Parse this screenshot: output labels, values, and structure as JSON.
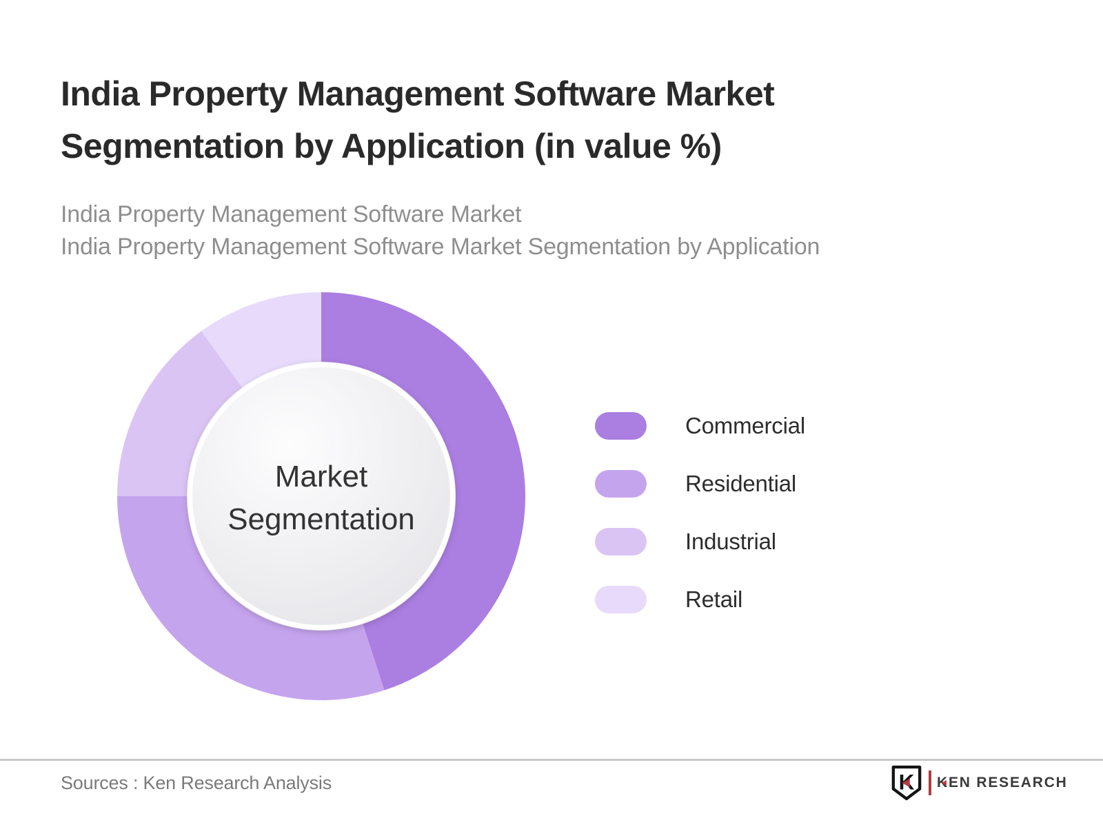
{
  "header": {
    "title_line1": "India Property Management Software Market",
    "title_line2": "Segmentation by Application (in value %)",
    "subtitle_line1": "India Property Management Software Market",
    "subtitle_line2": "India Property Management Software Market Segmentation by Application"
  },
  "chart_data": {
    "type": "pie",
    "variant": "donut",
    "title": "India Property Management Software Market Segmentation by Application (in value %)",
    "categories": [
      "Commercial",
      "Residential",
      "Industrial",
      "Retail"
    ],
    "values": [
      45,
      30,
      15,
      10
    ],
    "unit": "value %",
    "colors": [
      "#ab7ee2",
      "#c5a4ee",
      "#dac4f4",
      "#e7dafa"
    ],
    "start_angle_deg": 0,
    "direction": "clockwise",
    "legend_position": "right",
    "data_labels_shown": false,
    "center_label_line1": "Market",
    "center_label_line2": "Segmentation"
  },
  "footer": {
    "source_text": "Sources : Ken Research Analysis",
    "logo": {
      "letter": "K",
      "text": "KEN RESEARCH"
    }
  }
}
